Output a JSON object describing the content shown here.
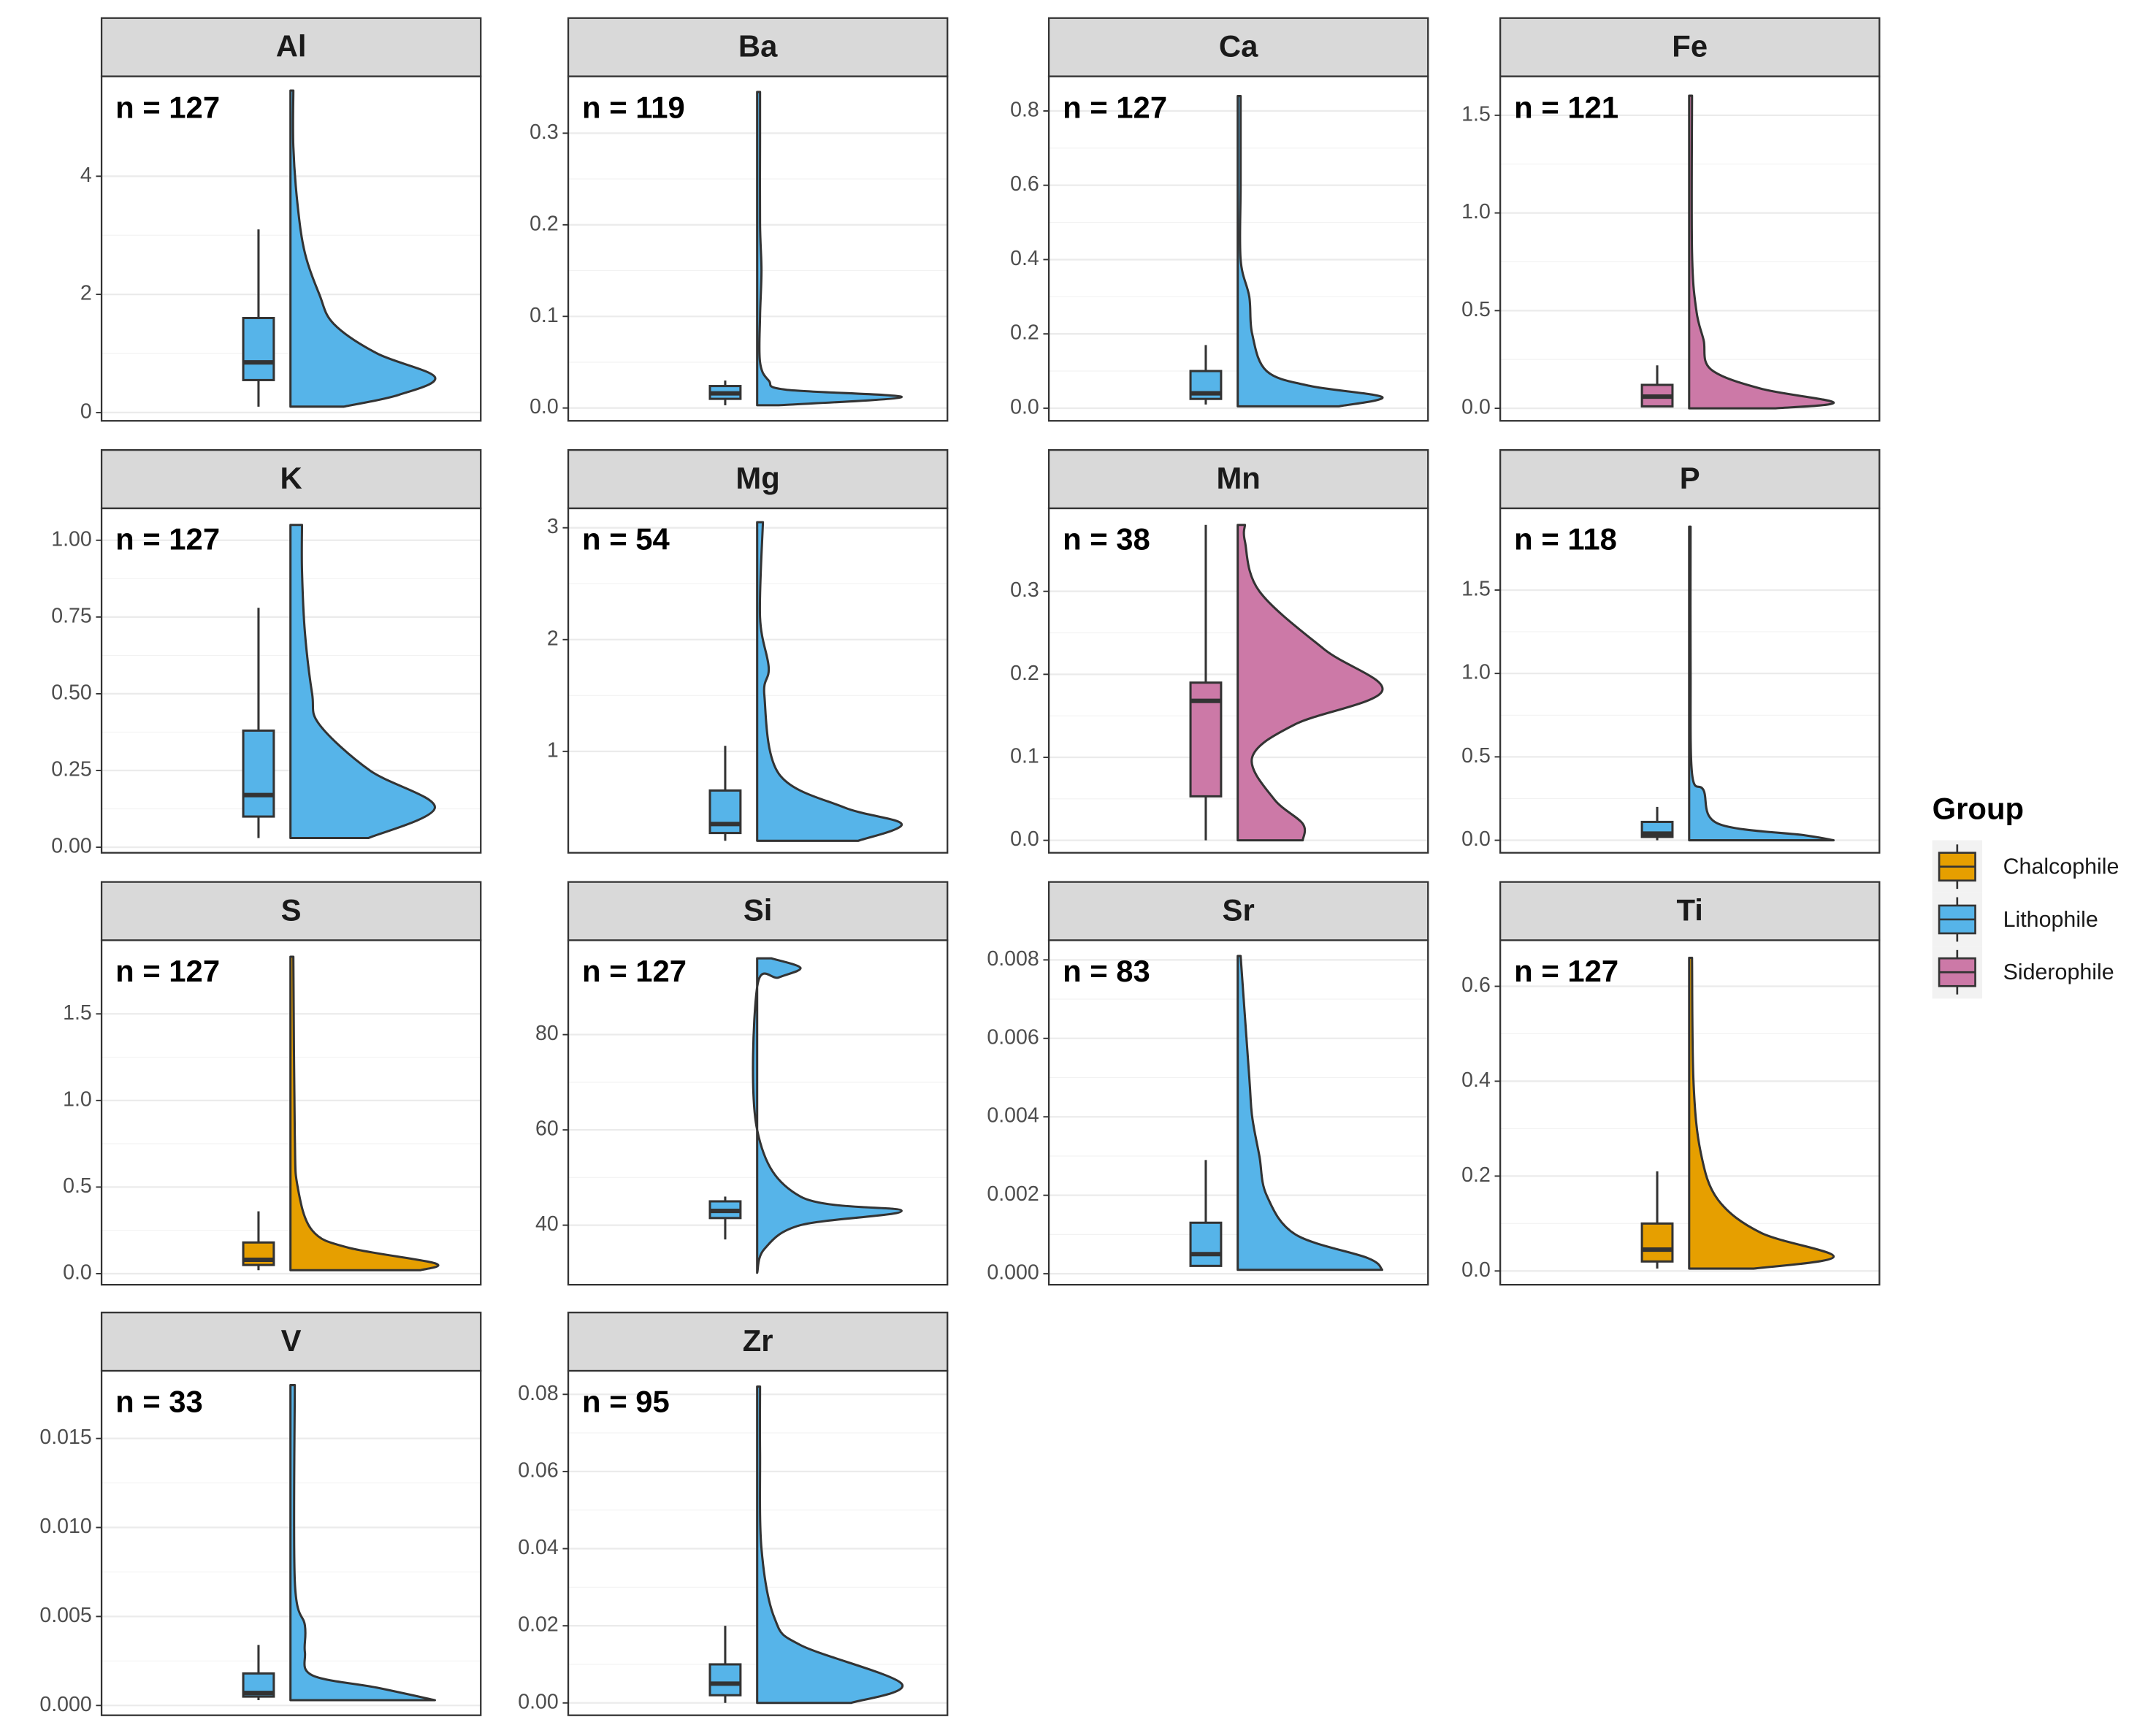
{
  "legend": {
    "title": "Group",
    "items": [
      {
        "name": "Chalcophile",
        "color": "#E69F00"
      },
      {
        "name": "Lithophile",
        "color": "#56B4E9"
      },
      {
        "name": "Siderophile",
        "color": "#CC79A7"
      }
    ]
  },
  "chart_data": [
    {
      "type": "violin",
      "title": "Al",
      "annotation": "n =  127",
      "color": "#56B4E9",
      "ylim": [
        -0.14,
        5.69
      ],
      "yticks": [
        0,
        2,
        4
      ],
      "box": {
        "min": 0.1,
        "q1": 0.55,
        "median": 0.85,
        "q3": 1.6,
        "max": 3.1
      },
      "violin": {
        "y": [
          0.1,
          0.3,
          0.6,
          1.0,
          1.5,
          2.0,
          2.7,
          3.5,
          4.5,
          5.45
        ],
        "density": [
          0.37,
          0.75,
          1.0,
          0.6,
          0.3,
          0.2,
          0.1,
          0.05,
          0.02,
          0.02
        ]
      }
    },
    {
      "type": "violin",
      "title": "Ba",
      "annotation": "n =  119",
      "color": "#56B4E9",
      "ylim": [
        -0.014,
        0.362
      ],
      "yticks": [
        {
          "value": 0,
          "label": "0.0"
        },
        0.1,
        0.2,
        0.3
      ],
      "box": {
        "min": 0.003,
        "q1": 0.01,
        "median": 0.016,
        "q3": 0.024,
        "max": 0.03
      },
      "violin": {
        "y": [
          0.003,
          0.012,
          0.02,
          0.03,
          0.05,
          0.1,
          0.15,
          0.2,
          0.29,
          0.345
        ],
        "density": [
          0.15,
          1.0,
          0.2,
          0.08,
          0.02,
          0.02,
          0.03,
          0.02,
          0.02,
          0.02
        ]
      }
    },
    {
      "type": "violin",
      "title": "Ca",
      "annotation": "n =  127",
      "color": "#56B4E9",
      "ylim": [
        -0.034,
        0.893
      ],
      "yticks": [
        {
          "value": 0,
          "label": "0.0"
        },
        0.2,
        0.4,
        0.6,
        0.8
      ],
      "box": {
        "min": 0.01,
        "q1": 0.025,
        "median": 0.04,
        "q3": 0.1,
        "max": 0.17
      },
      "violin": {
        "y": [
          0.005,
          0.03,
          0.06,
          0.1,
          0.2,
          0.3,
          0.4,
          0.6,
          0.84
        ],
        "density": [
          0.7,
          1.0,
          0.5,
          0.2,
          0.1,
          0.08,
          0.02,
          0.02,
          0.02
        ]
      }
    },
    {
      "type": "violin",
      "title": "Fe",
      "annotation": "n =  121",
      "color": "#CC79A7",
      "ylim": [
        -0.064,
        1.699
      ],
      "yticks": [
        {
          "value": 0,
          "label": "0.0"
        },
        0.5,
        {
          "value": 1,
          "label": "1.0"
        },
        1.5
      ],
      "box": {
        "min": 0.01,
        "q1": 0.01,
        "median": 0.06,
        "q3": 0.12,
        "max": 0.22
      },
      "violin": {
        "y": [
          0.0,
          0.03,
          0.1,
          0.2,
          0.35,
          0.5,
          0.8,
          1.6
        ],
        "density": [
          0.6,
          1.0,
          0.5,
          0.15,
          0.1,
          0.05,
          0.02,
          0.02
        ]
      }
    },
    {
      "type": "violin",
      "title": "K",
      "annotation": "n =  127",
      "color": "#56B4E9",
      "ylim": [
        -0.018,
        1.104
      ],
      "yticks": [
        {
          "value": 0,
          "label": "0.00"
        },
        0.25,
        {
          "value": 0.5,
          "label": "0.50"
        },
        0.75,
        {
          "value": 1,
          "label": "1.00"
        }
      ],
      "box": {
        "min": 0.03,
        "q1": 0.1,
        "median": 0.17,
        "q3": 0.38,
        "max": 0.78
      },
      "violin": {
        "y": [
          0.03,
          0.13,
          0.25,
          0.4,
          0.5,
          0.7,
          0.9,
          1.05
        ],
        "density": [
          0.54,
          1.0,
          0.55,
          0.2,
          0.15,
          0.1,
          0.08,
          0.08
        ]
      }
    },
    {
      "type": "violin",
      "title": "Mg",
      "annotation": "n =  54",
      "color": "#56B4E9",
      "ylim": [
        0.093,
        3.174
      ],
      "yticks": [
        1,
        2,
        3
      ],
      "box": {
        "min": 0.2,
        "q1": 0.27,
        "median": 0.35,
        "q3": 0.65,
        "max": 1.05
      },
      "violin": {
        "y": [
          0.2,
          0.35,
          0.5,
          0.8,
          1.5,
          1.75,
          2.2,
          3.05
        ],
        "density": [
          0.7,
          1.0,
          0.6,
          0.15,
          0.05,
          0.08,
          0.02,
          0.04
        ]
      }
    },
    {
      "type": "violin",
      "title": "Mn",
      "annotation": "n =  38",
      "color": "#CC79A7",
      "ylim": [
        -0.015,
        0.4
      ],
      "yticks": [
        {
          "value": 0,
          "label": "0.0"
        },
        0.1,
        0.2,
        0.3
      ],
      "box": {
        "min": 0.0,
        "q1": 0.053,
        "median": 0.168,
        "q3": 0.19,
        "max": 0.38
      },
      "violin": {
        "y": [
          0.0,
          0.02,
          0.05,
          0.1,
          0.14,
          0.18,
          0.23,
          0.3,
          0.36,
          0.38
        ],
        "density": [
          0.45,
          0.45,
          0.25,
          0.1,
          0.4,
          1.0,
          0.6,
          0.15,
          0.05,
          0.05
        ]
      }
    },
    {
      "type": "violin",
      "title": "P",
      "annotation": "n =  118",
      "color": "#56B4E9",
      "ylim": [
        -0.075,
        1.99
      ],
      "yticks": [
        {
          "value": 0,
          "label": "0.0"
        },
        0.5,
        {
          "value": 1,
          "label": "1.0"
        },
        1.5
      ],
      "box": {
        "min": 0.0,
        "q1": 0.02,
        "median": 0.04,
        "q3": 0.11,
        "max": 0.2
      },
      "violin": {
        "y": [
          0.0,
          0.03,
          0.1,
          0.3,
          0.4,
          1.05,
          1.88
        ],
        "density": [
          1.0,
          0.8,
          0.2,
          0.1,
          0.02,
          0.01,
          0.01
        ]
      }
    },
    {
      "type": "violin",
      "title": "S",
      "annotation": "n =  127",
      "color": "#E69F00",
      "ylim": [
        -0.064,
        1.925
      ],
      "yticks": [
        {
          "value": 0,
          "label": "0.0"
        },
        0.5,
        {
          "value": 1,
          "label": "1.0"
        },
        1.5
      ],
      "box": {
        "min": 0.02,
        "q1": 0.05,
        "median": 0.08,
        "q3": 0.18,
        "max": 0.36
      },
      "violin": {
        "y": [
          0.02,
          0.06,
          0.15,
          0.25,
          0.5,
          0.8,
          1.83
        ],
        "density": [
          0.9,
          1.0,
          0.4,
          0.15,
          0.05,
          0.03,
          0.02
        ]
      }
    },
    {
      "type": "violin",
      "title": "Si",
      "annotation": "n =  127",
      "color": "#56B4E9",
      "ylim": [
        27.5,
        99.8
      ],
      "yticks": [
        40,
        60,
        80
      ],
      "box": {
        "min": 37,
        "q1": 41.5,
        "median": 43,
        "q3": 45,
        "max": 46
      },
      "violin": {
        "y": [
          30,
          35,
          40,
          43,
          46,
          60,
          90,
          92,
          94,
          96
        ],
        "density": [
          0.0,
          0.05,
          0.3,
          1.0,
          0.3,
          0.0,
          0.0,
          0.15,
          0.3,
          0.1
        ]
      }
    },
    {
      "type": "violin",
      "title": "Sr",
      "annotation": "n =  83",
      "color": "#56B4E9",
      "ylim": [
        -0.00028,
        0.0085
      ],
      "yticks": [
        {
          "value": 0,
          "label": "0.000"
        },
        {
          "value": 0.002,
          "label": "0.002"
        },
        {
          "value": 0.004,
          "label": "0.004"
        },
        {
          "value": 0.006,
          "label": "0.006"
        },
        {
          "value": 0.008,
          "label": "0.008"
        }
      ],
      "box": {
        "min": 0.0002,
        "q1": 0.0002,
        "median": 0.0005,
        "q3": 0.0013,
        "max": 0.0029
      },
      "violin": {
        "y": [
          0.0001,
          0.0004,
          0.001,
          0.002,
          0.003,
          0.004,
          0.005,
          0.0081
        ],
        "density": [
          1.0,
          0.9,
          0.4,
          0.2,
          0.15,
          0.1,
          0.08,
          0.02
        ]
      }
    },
    {
      "type": "violin",
      "title": "Ti",
      "annotation": "n =  127",
      "color": "#E69F00",
      "ylim": [
        -0.029,
        0.697
      ],
      "yticks": [
        {
          "value": 0,
          "label": "0.0"
        },
        0.2,
        0.4,
        0.6
      ],
      "box": {
        "min": 0.005,
        "q1": 0.02,
        "median": 0.045,
        "q3": 0.1,
        "max": 0.21
      },
      "violin": {
        "y": [
          0.005,
          0.03,
          0.08,
          0.15,
          0.25,
          0.4,
          0.66
        ],
        "density": [
          0.45,
          1.0,
          0.5,
          0.2,
          0.08,
          0.03,
          0.02
        ]
      }
    },
    {
      "type": "violin",
      "title": "V",
      "annotation": "n =  33",
      "color": "#56B4E9",
      "ylim": [
        -0.00055,
        0.0188
      ],
      "yticks": [
        {
          "value": 0,
          "label": "0.000"
        },
        0.005,
        {
          "value": 0.01,
          "label": "0.010"
        },
        0.015
      ],
      "box": {
        "min": 0.0003,
        "q1": 0.0005,
        "median": 0.0007,
        "q3": 0.0018,
        "max": 0.0034
      },
      "violin": {
        "y": [
          0.0003,
          0.001,
          0.0017,
          0.003,
          0.0045,
          0.007,
          0.018
        ],
        "density": [
          1.0,
          0.6,
          0.15,
          0.1,
          0.1,
          0.03,
          0.03
        ]
      }
    },
    {
      "type": "violin",
      "title": "Zr",
      "annotation": "n =  95",
      "color": "#56B4E9",
      "ylim": [
        -0.0032,
        0.0861
      ],
      "yticks": [
        {
          "value": 0,
          "label": "0.00"
        },
        0.02,
        0.04,
        0.06,
        0.08
      ],
      "box": {
        "min": 0.0,
        "q1": 0.002,
        "median": 0.005,
        "q3": 0.01,
        "max": 0.02
      },
      "violin": {
        "y": [
          0.0,
          0.005,
          0.015,
          0.022,
          0.04,
          0.065,
          0.082
        ],
        "density": [
          0.65,
          1.0,
          0.3,
          0.12,
          0.03,
          0.02,
          0.02
        ]
      }
    }
  ]
}
